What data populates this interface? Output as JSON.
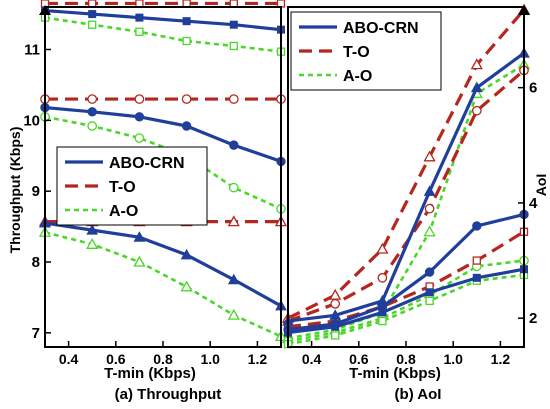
{
  "chart_data": [
    {
      "type": "line",
      "caption": "(a) Throughput",
      "xlabel": "T-min (Kbps)",
      "ylabel": "Throughput (Kbps)",
      "xlim": [
        0.3,
        1.3
      ],
      "ylim": [
        6.8,
        11.6
      ],
      "xticks": [
        "0.4",
        "0.6",
        "0.8",
        "1.0",
        "1.2"
      ],
      "yticks": [
        "7",
        "8",
        "9",
        "10",
        "11"
      ],
      "legend": {
        "position": "center-left",
        "entries": [
          "ABO-CRN",
          "T-O",
          "A-O"
        ]
      },
      "colors": {
        "ABO-CRN": "#1f3f9a",
        "T-O": "#b5261e",
        "A-O": "#4bd62a"
      },
      "x": [
        0.3,
        0.5,
        0.7,
        0.9,
        1.1,
        1.3
      ],
      "series": [
        {
          "name": "ABO-CRN",
          "marker": "square",
          "group": 1,
          "values": [
            11.55,
            11.5,
            11.45,
            11.4,
            11.35,
            11.28
          ]
        },
        {
          "name": "ABO-CRN",
          "marker": "circle",
          "group": 2,
          "values": [
            10.18,
            10.12,
            10.05,
            9.92,
            9.65,
            9.42
          ]
        },
        {
          "name": "ABO-CRN",
          "marker": "triangle",
          "group": 3,
          "values": [
            8.55,
            8.45,
            8.35,
            8.1,
            7.75,
            7.38
          ]
        },
        {
          "name": "T-O",
          "marker": "square",
          "group": 1,
          "values": [
            11.65,
            11.65,
            11.65,
            11.65,
            11.65,
            11.65
          ]
        },
        {
          "name": "T-O",
          "marker": "circle",
          "group": 2,
          "values": [
            10.3,
            10.3,
            10.3,
            10.3,
            10.3,
            10.3
          ]
        },
        {
          "name": "T-O",
          "marker": "triangle",
          "group": 3,
          "values": [
            8.57,
            8.57,
            8.57,
            8.57,
            8.57,
            8.57
          ]
        },
        {
          "name": "A-O",
          "marker": "square",
          "group": 1,
          "values": [
            11.45,
            11.35,
            11.25,
            11.12,
            11.05,
            10.97
          ]
        },
        {
          "name": "A-O",
          "marker": "circle",
          "group": 2,
          "values": [
            10.05,
            9.92,
            9.75,
            9.5,
            9.05,
            8.75
          ]
        },
        {
          "name": "A-O",
          "marker": "triangle",
          "group": 3,
          "values": [
            8.42,
            8.25,
            8.0,
            7.65,
            7.25,
            6.95
          ]
        }
      ]
    },
    {
      "type": "line",
      "caption": "(b) AoI",
      "xlabel": "T-min (Kbps)",
      "ylabel": "AoI",
      "xlim": [
        0.3,
        1.3
      ],
      "ylim": [
        1.5,
        7.4
      ],
      "xticks": [
        "0.4",
        "0.6",
        "0.8",
        "1.0",
        "1.2"
      ],
      "yticks": [
        "2",
        "4",
        "6"
      ],
      "legend": {
        "position": "top-left",
        "entries": [
          "ABO-CRN",
          "T-O",
          "A-O"
        ]
      },
      "colors": {
        "ABO-CRN": "#1f3f9a",
        "T-O": "#b5261e",
        "A-O": "#4bd62a"
      },
      "x": [
        0.3,
        0.5,
        0.7,
        0.9,
        1.1,
        1.3
      ],
      "series": [
        {
          "name": "ABO-CRN",
          "marker": "triangle",
          "group": 1,
          "values": [
            1.95,
            2.05,
            2.3,
            4.2,
            6.0,
            6.6
          ]
        },
        {
          "name": "ABO-CRN",
          "marker": "circle",
          "group": 2,
          "values": [
            1.8,
            1.9,
            2.2,
            2.8,
            3.6,
            3.8
          ]
        },
        {
          "name": "ABO-CRN",
          "marker": "square",
          "group": 3,
          "values": [
            1.75,
            1.85,
            2.1,
            2.45,
            2.7,
            2.85
          ]
        },
        {
          "name": "T-O",
          "marker": "triangle",
          "group": 1,
          "values": [
            2.0,
            2.4,
            3.2,
            4.8,
            6.4,
            7.35
          ]
        },
        {
          "name": "T-O",
          "marker": "circle",
          "group": 2,
          "values": [
            1.95,
            2.25,
            2.7,
            3.9,
            5.6,
            6.3
          ]
        },
        {
          "name": "T-O",
          "marker": "square",
          "group": 3,
          "values": [
            1.85,
            1.95,
            2.2,
            2.55,
            3.0,
            3.5
          ]
        },
        {
          "name": "A-O",
          "marker": "triangle",
          "group": 1,
          "values": [
            1.65,
            1.8,
            2.1,
            3.5,
            5.9,
            6.4
          ]
        },
        {
          "name": "A-O",
          "marker": "circle",
          "group": 2,
          "values": [
            1.6,
            1.75,
            2.0,
            2.4,
            2.9,
            3.0
          ]
        },
        {
          "name": "A-O",
          "marker": "square",
          "group": 3,
          "values": [
            1.55,
            1.7,
            1.95,
            2.3,
            2.65,
            2.75
          ]
        }
      ]
    }
  ]
}
